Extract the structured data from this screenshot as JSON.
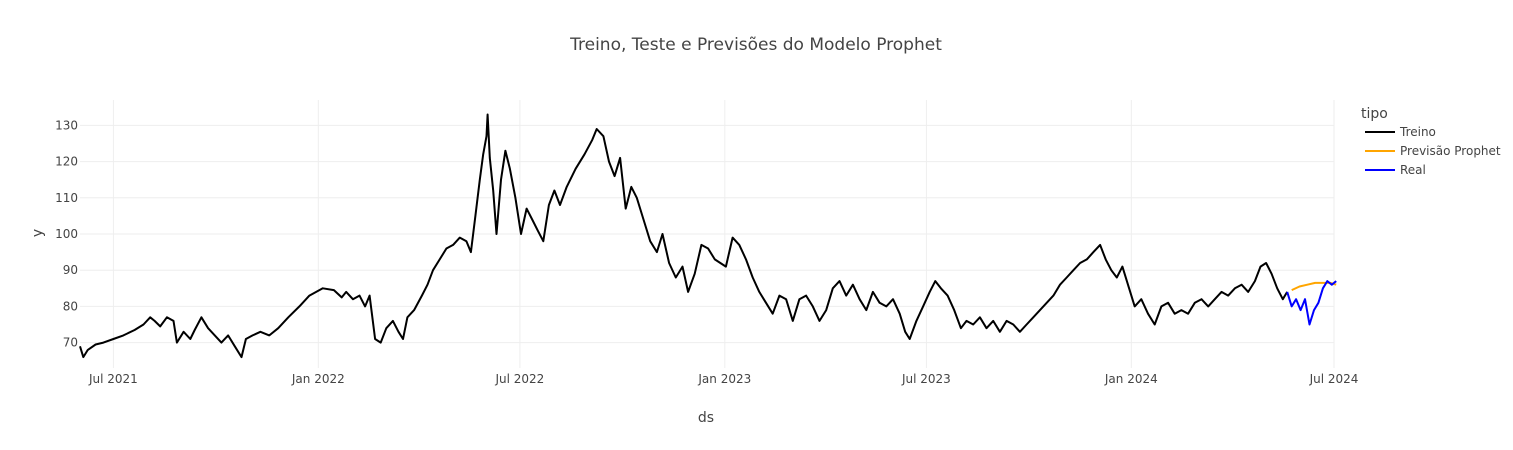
{
  "chart_data": {
    "type": "line",
    "title": "Treino, Teste e Previsões do Modelo Prophet",
    "xlabel": "ds",
    "ylabel": "y",
    "x_range": [
      "2021-06-01",
      "2024-07-01"
    ],
    "ylim": [
      63,
      137
    ],
    "x_ticks": [
      {
        "date": "2021-07-01",
        "label": "Jul 2021"
      },
      {
        "date": "2022-01-01",
        "label": "Jan 2022"
      },
      {
        "date": "2022-07-01",
        "label": "Jul 2022"
      },
      {
        "date": "2023-01-01",
        "label": "Jan 2023"
      },
      {
        "date": "2023-07-01",
        "label": "Jul 2023"
      },
      {
        "date": "2024-01-01",
        "label": "Jan 2024"
      },
      {
        "date": "2024-07-01",
        "label": "Jul 2024"
      }
    ],
    "y_ticks": [
      70,
      80,
      90,
      100,
      110,
      120,
      130
    ],
    "grid": true,
    "legend": {
      "title": "tipo",
      "position": "right"
    },
    "series": [
      {
        "name": "Treino",
        "color": "#000000",
        "points": [
          [
            "2021-06-01",
            69
          ],
          [
            "2021-06-04",
            66
          ],
          [
            "2021-06-08",
            68
          ],
          [
            "2021-06-15",
            69.5
          ],
          [
            "2021-06-22",
            70
          ],
          [
            "2021-07-01",
            71
          ],
          [
            "2021-07-10",
            72
          ],
          [
            "2021-07-20",
            73.5
          ],
          [
            "2021-07-28",
            75
          ],
          [
            "2021-08-03",
            77
          ],
          [
            "2021-08-07",
            76
          ],
          [
            "2021-08-12",
            74.5
          ],
          [
            "2021-08-18",
            77
          ],
          [
            "2021-08-24",
            76
          ],
          [
            "2021-08-27",
            70
          ],
          [
            "2021-09-02",
            73
          ],
          [
            "2021-09-08",
            71
          ],
          [
            "2021-09-12",
            73.5
          ],
          [
            "2021-09-18",
            77
          ],
          [
            "2021-09-24",
            74
          ],
          [
            "2021-09-30",
            72
          ],
          [
            "2021-10-06",
            70
          ],
          [
            "2021-10-12",
            72
          ],
          [
            "2021-10-18",
            69
          ],
          [
            "2021-10-24",
            66
          ],
          [
            "2021-10-28",
            71
          ],
          [
            "2021-11-03",
            72
          ],
          [
            "2021-11-10",
            73
          ],
          [
            "2021-11-18",
            72
          ],
          [
            "2021-11-26",
            74
          ],
          [
            "2021-12-05",
            77
          ],
          [
            "2021-12-15",
            80
          ],
          [
            "2021-12-24",
            83
          ],
          [
            "2022-01-05",
            85
          ],
          [
            "2022-01-15",
            84.5
          ],
          [
            "2022-01-22",
            82.5
          ],
          [
            "2022-01-26",
            84
          ],
          [
            "2022-02-01",
            82
          ],
          [
            "2022-02-07",
            83
          ],
          [
            "2022-02-12",
            80
          ],
          [
            "2022-02-16",
            83
          ],
          [
            "2022-02-21",
            71
          ],
          [
            "2022-02-26",
            70
          ],
          [
            "2022-03-03",
            74
          ],
          [
            "2022-03-09",
            76
          ],
          [
            "2022-03-14",
            73
          ],
          [
            "2022-03-18",
            71
          ],
          [
            "2022-03-22",
            77
          ],
          [
            "2022-03-28",
            79
          ],
          [
            "2022-04-04",
            83
          ],
          [
            "2022-04-09",
            86
          ],
          [
            "2022-04-14",
            90
          ],
          [
            "2022-04-20",
            93
          ],
          [
            "2022-04-26",
            96
          ],
          [
            "2022-05-02",
            97
          ],
          [
            "2022-05-08",
            99
          ],
          [
            "2022-05-14",
            98
          ],
          [
            "2022-05-18",
            95
          ],
          [
            "2022-05-22",
            105
          ],
          [
            "2022-05-26",
            115
          ],
          [
            "2022-05-29",
            122
          ],
          [
            "2022-06-01",
            127
          ],
          [
            "2022-06-02",
            133
          ],
          [
            "2022-06-04",
            121
          ],
          [
            "2022-06-07",
            112
          ],
          [
            "2022-06-10",
            100
          ],
          [
            "2022-06-14",
            115
          ],
          [
            "2022-06-18",
            123
          ],
          [
            "2022-06-22",
            118
          ],
          [
            "2022-06-27",
            110
          ],
          [
            "2022-07-02",
            100
          ],
          [
            "2022-07-07",
            107
          ],
          [
            "2022-07-12",
            104
          ],
          [
            "2022-07-17",
            101
          ],
          [
            "2022-07-22",
            98
          ],
          [
            "2022-07-27",
            108
          ],
          [
            "2022-08-01",
            112
          ],
          [
            "2022-08-06",
            108
          ],
          [
            "2022-08-12",
            113
          ],
          [
            "2022-08-20",
            118
          ],
          [
            "2022-08-28",
            122
          ],
          [
            "2022-09-04",
            126
          ],
          [
            "2022-09-08",
            129
          ],
          [
            "2022-09-14",
            127
          ],
          [
            "2022-09-19",
            120
          ],
          [
            "2022-09-24",
            116
          ],
          [
            "2022-09-29",
            121
          ],
          [
            "2022-10-04",
            107
          ],
          [
            "2022-10-09",
            113
          ],
          [
            "2022-10-14",
            110
          ],
          [
            "2022-10-20",
            104
          ],
          [
            "2022-10-26",
            98
          ],
          [
            "2022-11-01",
            95
          ],
          [
            "2022-11-06",
            100
          ],
          [
            "2022-11-12",
            92
          ],
          [
            "2022-11-18",
            88
          ],
          [
            "2022-11-24",
            91
          ],
          [
            "2022-11-29",
            84
          ],
          [
            "2022-12-05",
            89
          ],
          [
            "2022-12-11",
            97
          ],
          [
            "2022-12-17",
            96
          ],
          [
            "2022-12-23",
            93
          ],
          [
            "2023-01-02",
            91
          ],
          [
            "2023-01-08",
            99
          ],
          [
            "2023-01-14",
            97
          ],
          [
            "2023-01-20",
            93
          ],
          [
            "2023-01-26",
            88
          ],
          [
            "2023-02-01",
            84
          ],
          [
            "2023-02-07",
            81
          ],
          [
            "2023-02-13",
            78
          ],
          [
            "2023-02-19",
            83
          ],
          [
            "2023-02-25",
            82
          ],
          [
            "2023-03-03",
            76
          ],
          [
            "2023-03-09",
            82
          ],
          [
            "2023-03-15",
            83
          ],
          [
            "2023-03-21",
            80
          ],
          [
            "2023-03-27",
            76
          ],
          [
            "2023-04-02",
            79
          ],
          [
            "2023-04-08",
            85
          ],
          [
            "2023-04-14",
            87
          ],
          [
            "2023-04-20",
            83
          ],
          [
            "2023-04-26",
            86
          ],
          [
            "2023-05-02",
            82
          ],
          [
            "2023-05-08",
            79
          ],
          [
            "2023-05-14",
            84
          ],
          [
            "2023-05-20",
            81
          ],
          [
            "2023-05-26",
            80
          ],
          [
            "2023-06-01",
            82
          ],
          [
            "2023-06-07",
            78
          ],
          [
            "2023-06-12",
            73
          ],
          [
            "2023-06-16",
            71
          ],
          [
            "2023-06-22",
            76
          ],
          [
            "2023-06-28",
            80
          ],
          [
            "2023-07-04",
            84
          ],
          [
            "2023-07-09",
            87
          ],
          [
            "2023-07-14",
            85
          ],
          [
            "2023-07-20",
            83
          ],
          [
            "2023-07-26",
            79
          ],
          [
            "2023-08-01",
            74
          ],
          [
            "2023-08-06",
            76
          ],
          [
            "2023-08-12",
            75
          ],
          [
            "2023-08-18",
            77
          ],
          [
            "2023-08-24",
            74
          ],
          [
            "2023-08-30",
            76
          ],
          [
            "2023-09-05",
            73
          ],
          [
            "2023-09-11",
            76
          ],
          [
            "2023-09-17",
            75
          ],
          [
            "2023-09-23",
            73
          ],
          [
            "2023-09-29",
            75
          ],
          [
            "2023-10-05",
            77
          ],
          [
            "2023-10-11",
            79
          ],
          [
            "2023-10-17",
            81
          ],
          [
            "2023-10-23",
            83
          ],
          [
            "2023-10-29",
            86
          ],
          [
            "2023-11-04",
            88
          ],
          [
            "2023-11-10",
            90
          ],
          [
            "2023-11-16",
            92
          ],
          [
            "2023-11-22",
            93
          ],
          [
            "2023-11-28",
            95
          ],
          [
            "2023-12-04",
            97
          ],
          [
            "2023-12-09",
            93
          ],
          [
            "2023-12-14",
            90
          ],
          [
            "2023-12-19",
            88
          ],
          [
            "2023-12-24",
            91
          ],
          [
            "2023-12-30",
            85
          ],
          [
            "2024-01-04",
            80
          ],
          [
            "2024-01-10",
            82
          ],
          [
            "2024-01-16",
            78
          ],
          [
            "2024-01-22",
            75
          ],
          [
            "2024-01-28",
            80
          ],
          [
            "2024-02-03",
            81
          ],
          [
            "2024-02-09",
            78
          ],
          [
            "2024-02-15",
            79
          ],
          [
            "2024-02-21",
            78
          ],
          [
            "2024-02-27",
            81
          ],
          [
            "2024-03-04",
            82
          ],
          [
            "2024-03-10",
            80
          ],
          [
            "2024-03-16",
            82
          ],
          [
            "2024-03-22",
            84
          ],
          [
            "2024-03-28",
            83
          ],
          [
            "2024-04-03",
            85
          ],
          [
            "2024-04-09",
            86
          ],
          [
            "2024-04-15",
            84
          ],
          [
            "2024-04-21",
            87
          ],
          [
            "2024-04-26",
            91
          ],
          [
            "2024-05-01",
            92
          ],
          [
            "2024-05-06",
            89
          ],
          [
            "2024-05-11",
            85
          ],
          [
            "2024-05-16",
            82
          ],
          [
            "2024-05-20",
            84
          ]
        ]
      },
      {
        "name": "Previsão Prophet",
        "color": "#ffa500",
        "points": [
          [
            "2024-05-24",
            84.5
          ],
          [
            "2024-05-31",
            85.5
          ],
          [
            "2024-06-07",
            86
          ],
          [
            "2024-06-14",
            86.5
          ],
          [
            "2024-06-21",
            86.5
          ],
          [
            "2024-06-28",
            86.5
          ],
          [
            "2024-07-03",
            86
          ]
        ]
      },
      {
        "name": "Real",
        "color": "#0000ff",
        "points": [
          [
            "2024-05-20",
            84
          ],
          [
            "2024-05-24",
            80
          ],
          [
            "2024-05-28",
            82
          ],
          [
            "2024-06-01",
            79
          ],
          [
            "2024-06-05",
            82
          ],
          [
            "2024-06-09",
            75
          ],
          [
            "2024-06-13",
            79
          ],
          [
            "2024-06-17",
            81
          ],
          [
            "2024-06-21",
            85
          ],
          [
            "2024-06-25",
            87
          ],
          [
            "2024-06-29",
            86
          ],
          [
            "2024-07-03",
            87
          ]
        ]
      }
    ]
  }
}
